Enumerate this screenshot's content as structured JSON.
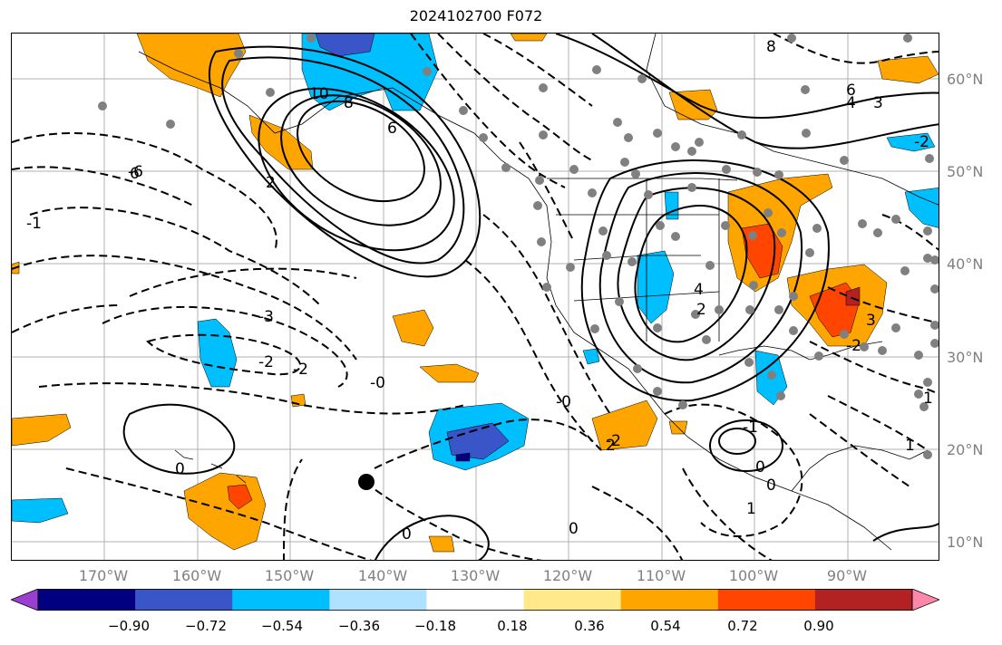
{
  "title": "2024102700 F072",
  "lat_labels": [
    "60°N",
    "50°N",
    "40°N",
    "30°N",
    "20°N",
    "10°N"
  ],
  "lon_labels": [
    "170°W",
    "160°W",
    "150°W",
    "140°W",
    "130°W",
    "120°W",
    "110°W",
    "100°W",
    "90°W"
  ],
  "contour_labels": [
    "10",
    "8",
    "6",
    "6",
    "4",
    "3",
    "2",
    "-6",
    "-1",
    "-3",
    "-2",
    "-2",
    "-0",
    "-0",
    "0",
    "-2",
    "-1",
    "0",
    "0",
    "0",
    "0",
    "1",
    "1",
    "1",
    "3",
    "-2",
    "-2",
    "2",
    "4",
    "2",
    "8",
    "6"
  ],
  "colorbar": {
    "ticks": [
      "−0.90",
      "−0.72",
      "−0.54",
      "−0.36",
      "−0.18",
      "0.18",
      "0.36",
      "0.54",
      "0.72",
      "0.90"
    ],
    "colors": [
      "#9a3fd1",
      "#000080",
      "#3a55c8",
      "#00bfff",
      "#aee2ff",
      "#ffffff",
      "#ffe98a",
      "#ffa500",
      "#ff4500",
      "#b22222",
      "#ff88aa"
    ]
  }
}
